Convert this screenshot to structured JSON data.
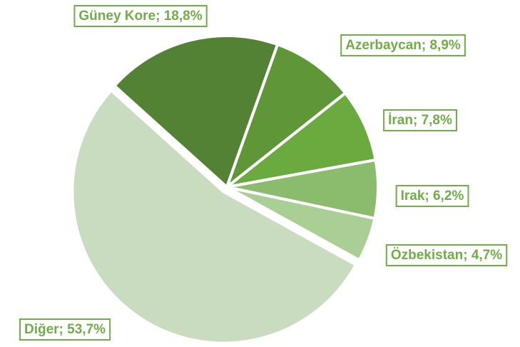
{
  "chart_data": {
    "type": "pie",
    "categories": [
      "Güney Kore",
      "Azerbaycan",
      "İran",
      "Irak",
      "Özbekistan",
      "Diğer"
    ],
    "values": [
      18.8,
      8.9,
      7.8,
      6.2,
      4.7,
      53.7
    ],
    "value_labels": [
      "18,8%",
      "8,9%",
      "7,8%",
      "6,2%",
      "4,7%",
      "53,7%"
    ],
    "label_separator": "; ",
    "colors": [
      "#548235",
      "#5f9638",
      "#6aaa3e",
      "#8bbb6c",
      "#a9cf94",
      "#c9dcc0"
    ],
    "label_color": "#70ad47"
  }
}
